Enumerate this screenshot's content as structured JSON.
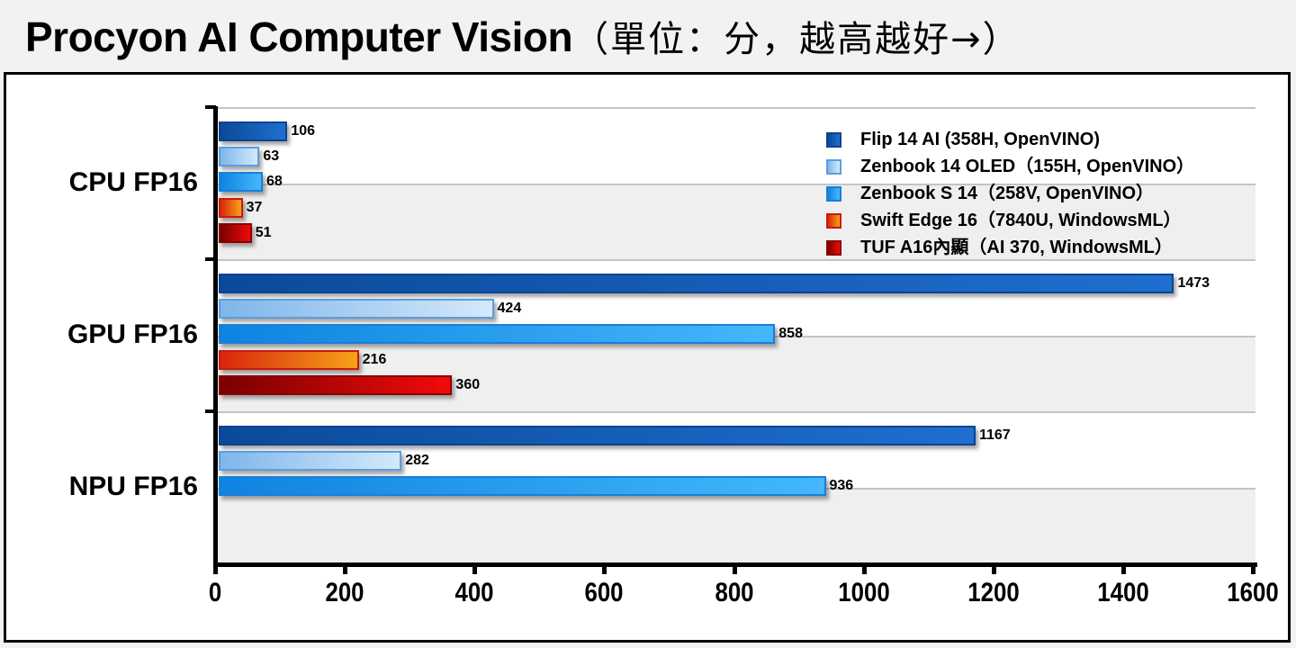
{
  "title": {
    "main": "Procyon AI Computer Vision",
    "suffix": "（單位：分，越高越好→）"
  },
  "legend": [
    {
      "label": "Flip 14 AI (358H, OpenVINO)",
      "color_from": "#0b4a9a",
      "color_to": "#1f6fd0",
      "border": "#0a4391"
    },
    {
      "label": "Zenbook 14 OLED（155H, OpenVINO）",
      "color_from": "#7fb6ea",
      "color_to": "#d4e9fb",
      "border": "#5a9ee0"
    },
    {
      "label": "Zenbook S 14（258V, OpenVINO）",
      "color_from": "#0f83e0",
      "color_to": "#44b8fb",
      "border": "#1a7fd8"
    },
    {
      "label": "Swift Edge 16（7840U, WindowsML）",
      "color_from": "#d8250d",
      "color_to": "#f8a11a",
      "border": "#c91a0a"
    },
    {
      "label": "TUF A16內顯（AI 370, WindowsML）",
      "color_from": "#7a0000",
      "color_to": "#f20a0a",
      "border": "#8a0000"
    }
  ],
  "axis": {
    "x_ticks": [
      "0",
      "200",
      "400",
      "600",
      "800",
      "1000",
      "1200",
      "1400",
      "1600"
    ]
  },
  "chart_data": {
    "type": "bar",
    "orientation": "horizontal",
    "title": "Procyon AI Computer Vision（單位：分，越高越好→）",
    "xlabel": "",
    "ylabel": "",
    "xlim": [
      0,
      1600
    ],
    "x_ticks": [
      0,
      200,
      400,
      600,
      800,
      1000,
      1200,
      1400,
      1600
    ],
    "grid": true,
    "legend_position": "top-right (inside plot)",
    "categories": [
      "CPU FP16",
      "GPU FP16",
      "NPU FP16"
    ],
    "series": [
      {
        "name": "Flip 14 AI (358H, OpenVINO)",
        "values": [
          106,
          1473,
          1167
        ]
      },
      {
        "name": "Zenbook 14 OLED（155H, OpenVINO）",
        "values": [
          63,
          424,
          282
        ]
      },
      {
        "name": "Zenbook S 14（258V, OpenVINO）",
        "values": [
          68,
          858,
          936
        ]
      },
      {
        "name": "Swift Edge 16（7840U, WindowsML）",
        "values": [
          37,
          216,
          null
        ]
      },
      {
        "name": "TUF A16內顯（AI 370, WindowsML）",
        "values": [
          51,
          360,
          null
        ]
      }
    ]
  }
}
